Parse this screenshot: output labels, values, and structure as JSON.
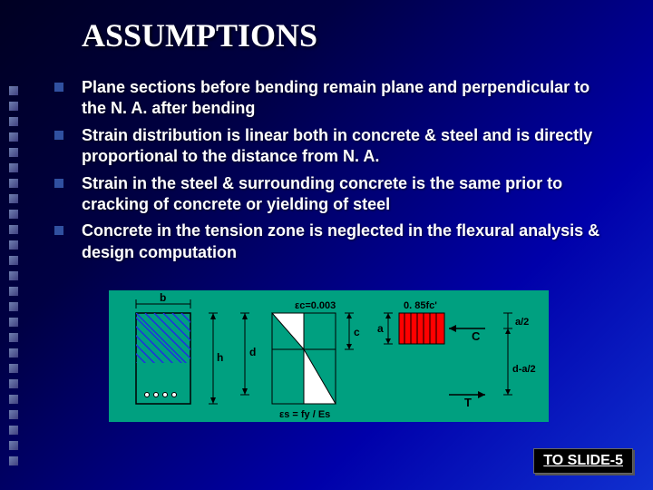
{
  "title": "ASSUMPTIONS",
  "bullets": [
    "Plane sections before bending remain plane and perpendicular to the N. A. after bending",
    "Strain distribution is linear both in concrete & steel and is directly proportional to the distance from N. A.",
    "Strain in the steel & surrounding concrete is the same prior to cracking of concrete or yielding of steel",
    "Concrete in the tension zone is neglected in the flexural analysis & design computation"
  ],
  "diagram": {
    "bg": "#00a080",
    "stroke": "#000000",
    "hatch": "#2030e0",
    "stress_fill": "#ff0000",
    "labels": {
      "b": "b",
      "h": "h",
      "d": "d",
      "ec": "εc=0.003",
      "es": "εs = fy / Es",
      "c": "c",
      "a": "a",
      "fc": "0. 85fc'",
      "C": "C",
      "T": "T",
      "a2": "a/2",
      "da2": "d-a/2"
    }
  },
  "link": "TO SLIDE-5",
  "side_square_count": 25
}
